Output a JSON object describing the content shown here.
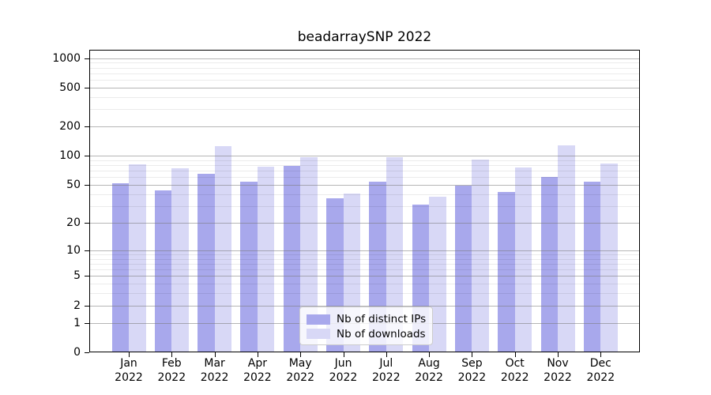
{
  "chart_data": {
    "type": "bar",
    "title": "beadarraySNP 2022",
    "year": "2022",
    "categories": [
      "Jan",
      "Feb",
      "Mar",
      "Apr",
      "May",
      "Jun",
      "Jul",
      "Aug",
      "Sep",
      "Oct",
      "Nov",
      "Dec"
    ],
    "series": [
      {
        "name": "Nb of distinct IPs",
        "color": "#a8a8ec",
        "values": [
          52,
          44,
          65,
          54,
          79,
          36,
          54,
          31,
          49,
          42,
          60,
          54
        ]
      },
      {
        "name": "Nb of downloads",
        "color": "#d8d8f6",
        "values": [
          81,
          75,
          126,
          77,
          97,
          41,
          96,
          38,
          92,
          76,
          129,
          84
        ]
      }
    ],
    "xlabel": "",
    "ylabel": "",
    "y_scale": "log10(x+1)",
    "ylim": [
      0,
      1290
    ],
    "y_ticks": [
      1000,
      500,
      200,
      100,
      50,
      20,
      10,
      5,
      2,
      1,
      0
    ],
    "y_minor_ticks": [
      3,
      4,
      6,
      7,
      8,
      9,
      30,
      40,
      60,
      70,
      80,
      90,
      300,
      400,
      600,
      700,
      800,
      900
    ],
    "grid": "major and minor horizontal gridlines",
    "legend_position": "bottom-center"
  }
}
